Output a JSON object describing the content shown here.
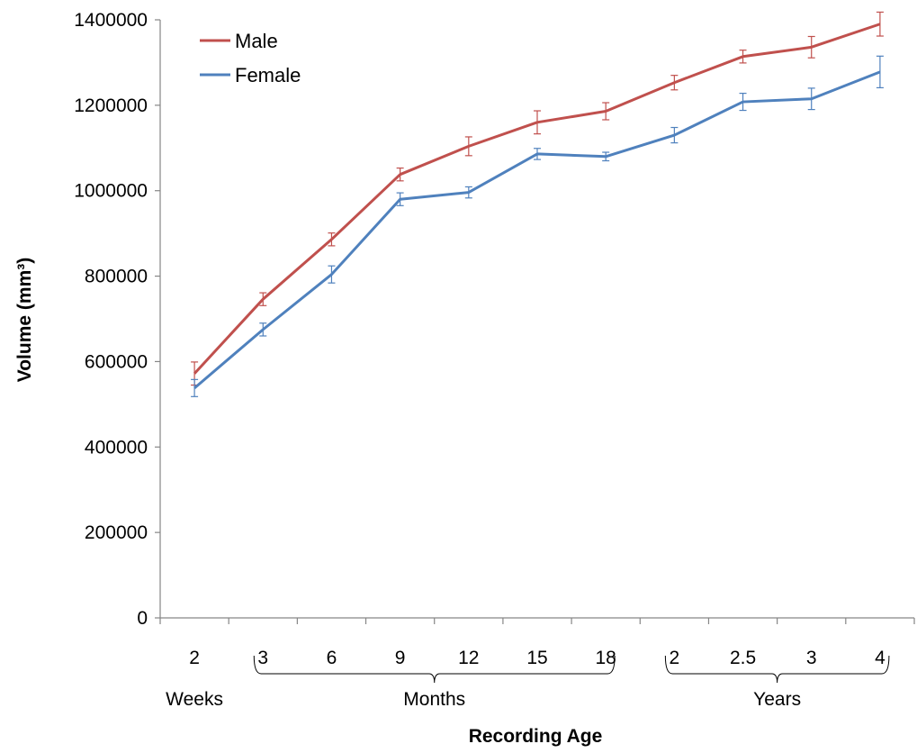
{
  "chart_data": {
    "type": "line",
    "title": "",
    "xlabel": "Recording Age",
    "ylabel": "Volume (mm³)",
    "ylim": [
      0,
      1400000
    ],
    "yticks": [
      "0",
      "200000",
      "400000",
      "600000",
      "800000",
      "1000000",
      "1200000",
      "1400000"
    ],
    "categories": [
      "2",
      "3",
      "6",
      "9",
      "12",
      "15",
      "18",
      "2",
      "2.5",
      "3",
      "4"
    ],
    "groups": [
      {
        "label": "Weeks",
        "from": 0,
        "to": 0
      },
      {
        "label": "Months",
        "from": 1,
        "to": 6
      },
      {
        "label": "Years",
        "from": 7,
        "to": 10
      }
    ],
    "legend_position": "top-left",
    "grid": false,
    "series": [
      {
        "name": "Male",
        "color": "#c0504d",
        "values": [
          572000,
          746000,
          886000,
          1038000,
          1104000,
          1160000,
          1186000,
          1253000,
          1314000,
          1336000,
          1390000
        ],
        "errors": [
          27000,
          15000,
          15000,
          15000,
          22000,
          27000,
          20000,
          17000,
          15000,
          25000,
          28000
        ]
      },
      {
        "name": "Female",
        "color": "#4f81bd",
        "values": [
          538000,
          675000,
          804000,
          980000,
          996000,
          1086000,
          1080000,
          1130000,
          1208000,
          1215000,
          1278000
        ],
        "errors": [
          20000,
          15000,
          20000,
          15000,
          13000,
          13000,
          10000,
          18000,
          20000,
          25000,
          37000
        ]
      }
    ]
  }
}
